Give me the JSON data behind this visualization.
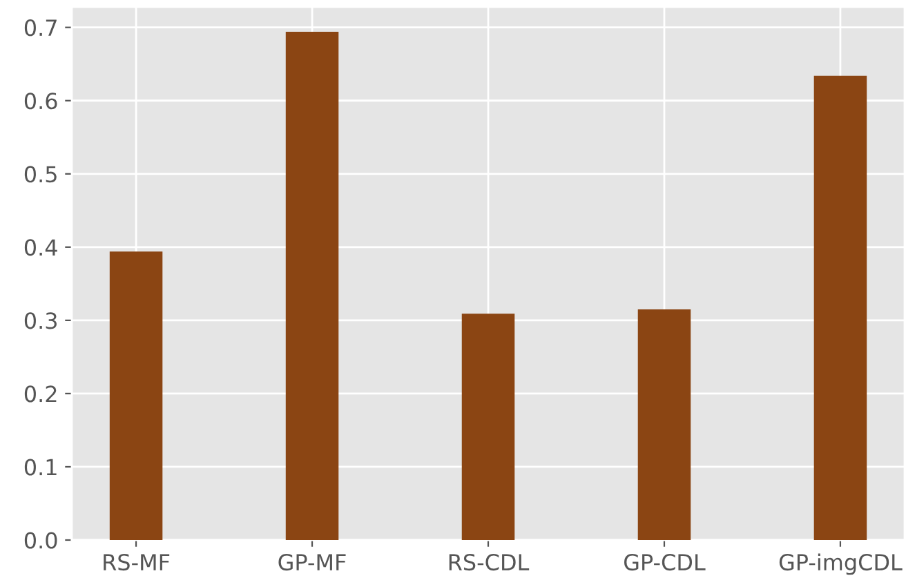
{
  "chart_data": {
    "type": "bar",
    "categories": [
      "RS-MF",
      "GP-MF",
      "RS-CDL",
      "GP-CDL",
      "GP-imgCDL"
    ],
    "values": [
      0.394,
      0.694,
      0.309,
      0.315,
      0.634
    ],
    "color": "#8b4513",
    "ylim": [
      0,
      0.728
    ],
    "yticks": [
      {
        "value": 0,
        "label": "0.0"
      },
      {
        "value": 0.1,
        "label": "0.1"
      },
      {
        "value": 0.2,
        "label": "0.2"
      },
      {
        "value": 0.3,
        "label": "0.3"
      },
      {
        "value": 0.4,
        "label": "0.4"
      },
      {
        "value": 0.5,
        "label": "0.5"
      },
      {
        "value": 0.6,
        "label": "0.6"
      },
      {
        "value": 0.7,
        "label": "0.7"
      }
    ],
    "grid": true
  }
}
